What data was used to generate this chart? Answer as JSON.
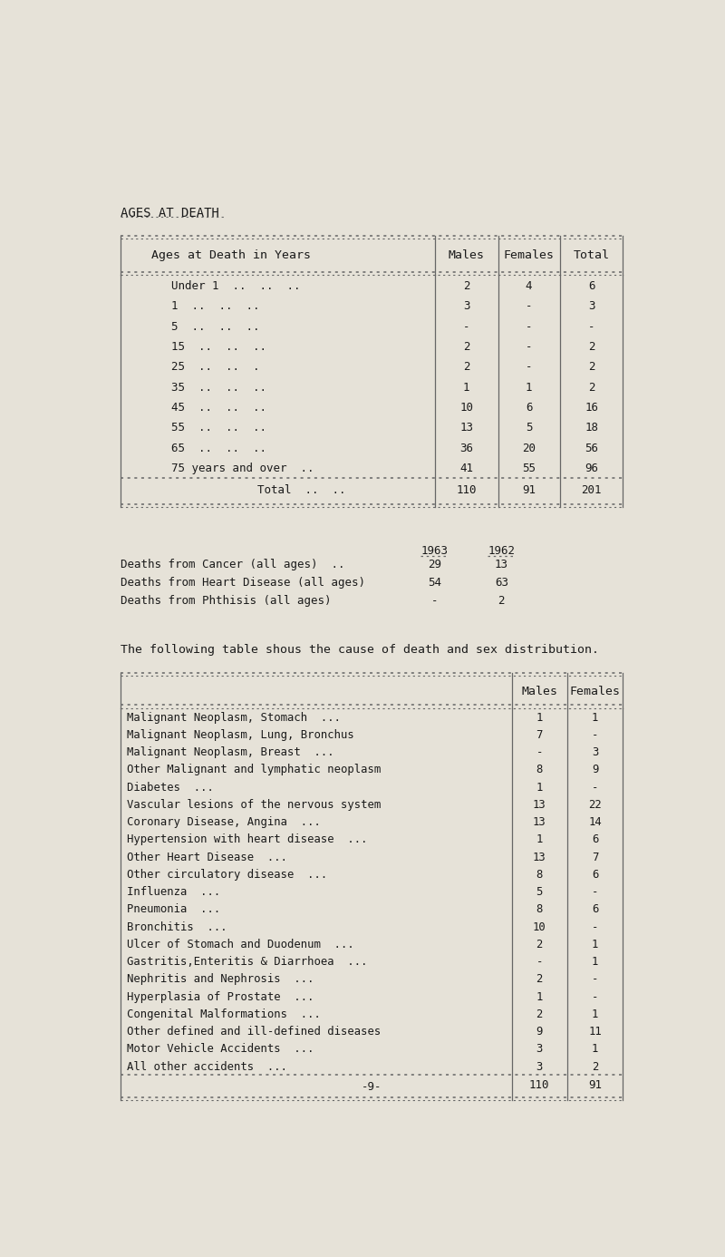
{
  "bg_color": "#e6e2d8",
  "text_color": "#1a1a1a",
  "title": "AGES AT DEATH",
  "page_number": "-9-",
  "table1_header": [
    "Ages at Death in Years",
    "Males",
    "Females",
    "Total"
  ],
  "table1_rows": [
    [
      "Under 1  ..  ..  ..",
      "2",
      "4",
      "6"
    ],
    [
      "1  ..  ..  ..",
      "3",
      "-",
      "3"
    ],
    [
      "5  ..  ..  ..",
      "-",
      "-",
      "-"
    ],
    [
      "15  ..  ..  ..",
      "2",
      "-",
      "2"
    ],
    [
      "25  ..  ..  .",
      "2",
      "-",
      "2"
    ],
    [
      "35  ..  ..  ..",
      "1",
      "1",
      "2"
    ],
    [
      "45  ..  ..  ..",
      "10",
      "6",
      "16"
    ],
    [
      "55  ..  ..  ..",
      "13",
      "5",
      "18"
    ],
    [
      "65  ..  ..  ..",
      "36",
      "20",
      "56"
    ],
    [
      "75 years and over  ..",
      "41",
      "55",
      "96"
    ]
  ],
  "table1_total": [
    "Total  ..  ..",
    "110",
    "91",
    "201"
  ],
  "comp_rows": [
    [
      "Deaths from Cancer (all ages)  ..",
      "29",
      "13"
    ],
    [
      "Deaths from Heart Disease (all ages)",
      "54",
      "63"
    ],
    [
      "Deaths from Phthisis (all ages)",
      "-",
      "2"
    ]
  ],
  "intro_text": "The following table shous the cause of death and sex distribution.",
  "table2_rows": [
    [
      "Malignant Neoplasm, Stomach  ...",
      "1",
      "1"
    ],
    [
      "Malignant Neoplasm, Lung, Bronchus",
      "7",
      "-"
    ],
    [
      "Malignant Neoplasm, Breast  ...",
      "-",
      "3"
    ],
    [
      "Other Malignant and lymphatic neoplasm",
      "8",
      "9"
    ],
    [
      "Diabetes  ...",
      "1",
      "-"
    ],
    [
      "Vascular lesions of the nervous system",
      "13",
      "22"
    ],
    [
      "Coronary Disease, Angina  ...",
      "13",
      "14"
    ],
    [
      "Hypertension with heart disease  ...",
      "1",
      "6"
    ],
    [
      "Other Heart Disease  ...",
      "13",
      "7"
    ],
    [
      "Other circulatory disease  ...",
      "8",
      "6"
    ],
    [
      "Influenza  ...",
      "5",
      "-"
    ],
    [
      "Pneumonia  ...",
      "8",
      "6"
    ],
    [
      "Bronchitis  ...",
      "10",
      "-"
    ],
    [
      "Ulcer of Stomach and Duodenum  ...",
      "2",
      "1"
    ],
    [
      "Gastritis,Enteritis & Diarrhoea  ...",
      "-",
      "1"
    ],
    [
      "Nephritis and Nephrosis  ...",
      "2",
      "-"
    ],
    [
      "Hyperplasia of Prostate  ...",
      "1",
      "-"
    ],
    [
      "Congenital Malformations  ...",
      "2",
      "1"
    ],
    [
      "Other defined and ill-defined diseases",
      "9",
      "11"
    ],
    [
      "Motor Vehicle Accidents  ...",
      "3",
      "1"
    ],
    [
      "All other accidents  ...",
      "3",
      "2"
    ]
  ],
  "table2_total": [
    "",
    "110",
    "91"
  ]
}
